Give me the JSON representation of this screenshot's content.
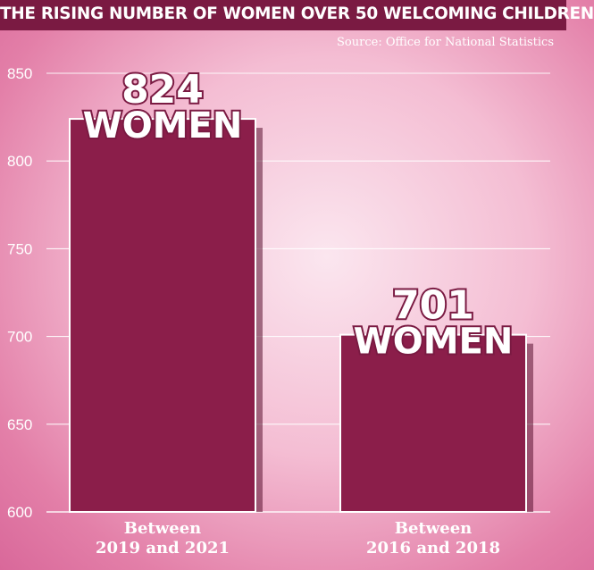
{
  "title": "THE RISING NUMBER OF WOMEN OVER 50 WELCOMING CHILDREN",
  "source": "Source: Office for National Statistics",
  "colors": {
    "bar_fill": "#8b1e4a",
    "bar_edge": "#ffffff",
    "title_bg": "#7a1a42",
    "gridline": "#ffffff"
  },
  "chart_data": {
    "type": "bar",
    "categories": [
      "Between\n2019 and 2021",
      "Between\n2016 and 2018"
    ],
    "values": [
      824,
      701
    ],
    "data_labels": [
      {
        "number": "824",
        "unit": "WOMEN"
      },
      {
        "number": "701",
        "unit": "WOMEN"
      }
    ],
    "ylim": [
      600,
      850
    ],
    "yticks": [
      600,
      650,
      700,
      750,
      800,
      850
    ],
    "grid": true,
    "title": "THE RISING NUMBER OF WOMEN OVER 50 WELCOMING CHILDREN",
    "xlabel": "",
    "ylabel": ""
  }
}
